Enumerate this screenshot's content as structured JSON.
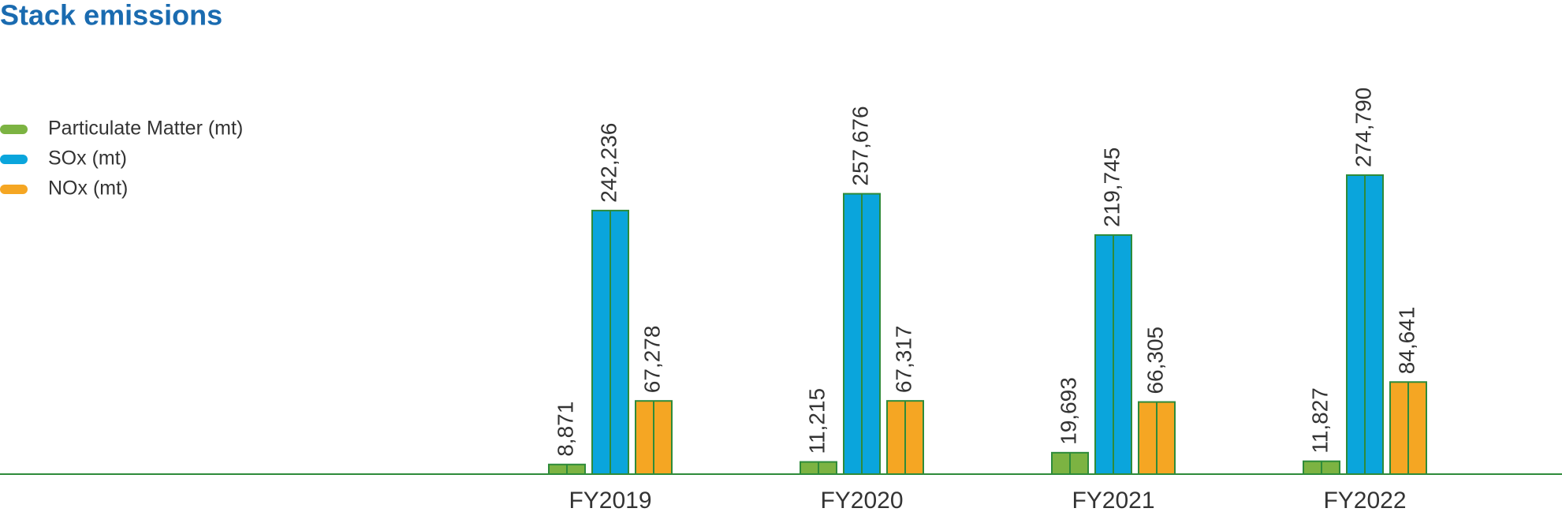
{
  "chart_data": {
    "type": "bar",
    "title": "Stack emissions",
    "categories": [
      "FY2019",
      "FY2020",
      "FY2021",
      "FY2022"
    ],
    "series": [
      {
        "name": "Particulate Matter (mt)",
        "color": "#7cb342",
        "values": [
          8871,
          11215,
          19693,
          11827
        ],
        "value_labels": [
          "8,871",
          "11,215",
          "19,693",
          "11,827"
        ]
      },
      {
        "name": "SOx (mt)",
        "color": "#0aa5dc",
        "values": [
          242236,
          257676,
          219745,
          274790
        ],
        "value_labels": [
          "242,236",
          "257,676",
          "219,745",
          "274,790"
        ]
      },
      {
        "name": "NOx (mt)",
        "color": "#f5a623",
        "values": [
          67278,
          67317,
          66305,
          84641
        ],
        "value_labels": [
          "67,278",
          "67,317",
          "66,305",
          "84,641"
        ]
      }
    ],
    "legend": "top-left"
  }
}
